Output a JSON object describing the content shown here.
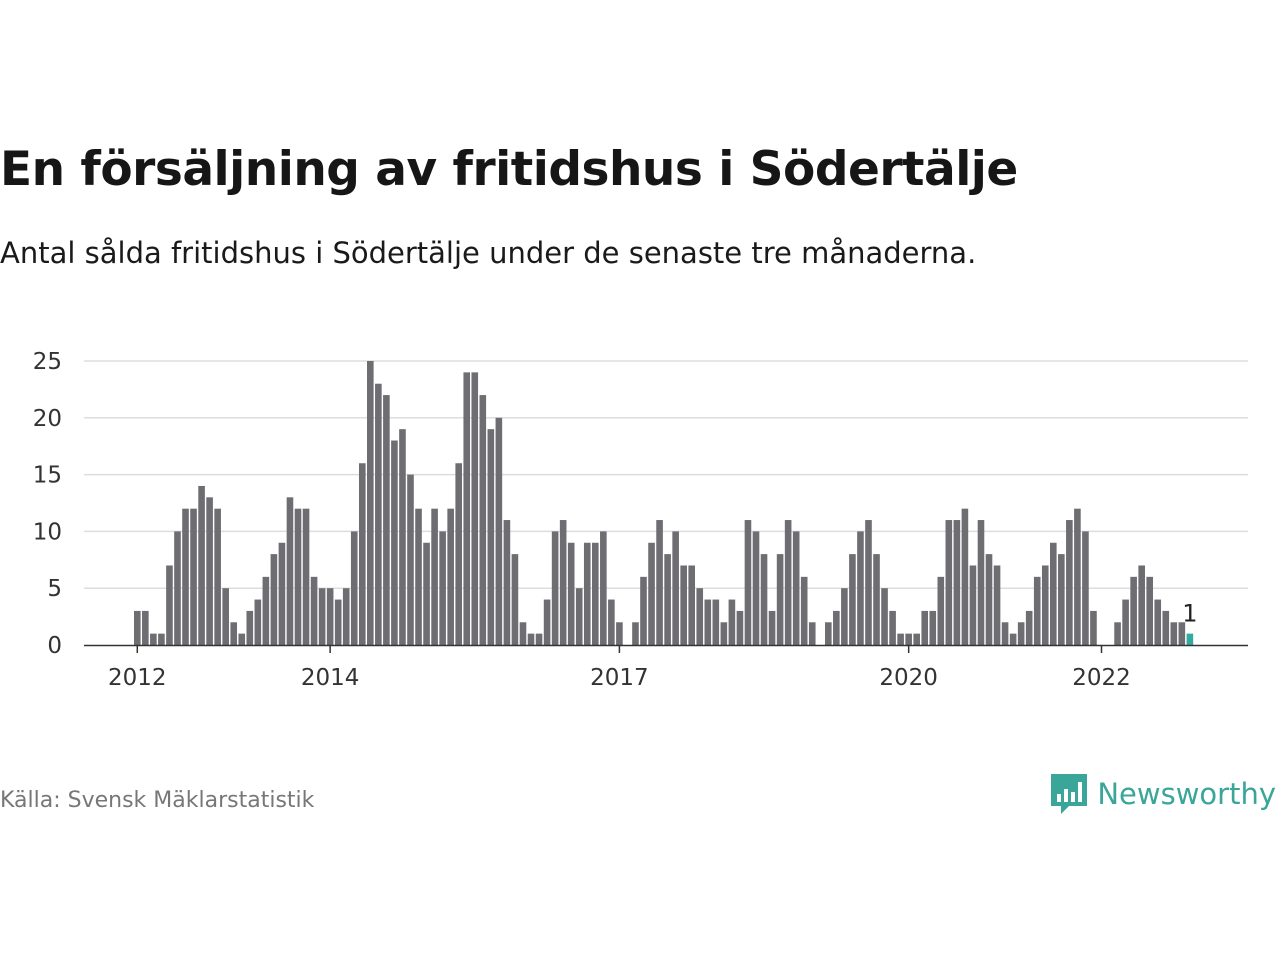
{
  "header": {
    "title": "En försäljning av fritidshus i Södertälje",
    "subtitle": "Antal sålda fritidshus i Södertälje under de senaste tre månaderna."
  },
  "footer": {
    "source": "Källa: Svensk Mäklarstatistik",
    "brand": "Newsworthy",
    "brand_icon": "bar-chart-speech-bubble-icon"
  },
  "colors": {
    "bar": "#6d6d72",
    "highlight": "#33a9a0",
    "grid": "#dddddd",
    "axis": "#333333",
    "brand": "#3aa69a"
  },
  "chart_data": {
    "type": "bar",
    "xlabel": "",
    "ylabel": "",
    "ylim": [
      0,
      25
    ],
    "yticks": [
      0,
      5,
      10,
      15,
      20,
      25
    ],
    "grid": true,
    "x_tick_labels": [
      {
        "label": "2012",
        "x": "2012-01"
      },
      {
        "label": "2014",
        "x": "2014-01"
      },
      {
        "label": "2017",
        "x": "2017-01"
      },
      {
        "label": "2020",
        "x": "2020-01"
      },
      {
        "label": "2022",
        "x": "2022-01"
      }
    ],
    "start_month": "2012-01",
    "values": [
      3,
      3,
      1,
      1,
      7,
      10,
      12,
      12,
      14,
      13,
      12,
      5,
      2,
      1,
      3,
      4,
      6,
      8,
      9,
      13,
      12,
      12,
      6,
      5,
      5,
      4,
      5,
      10,
      16,
      25,
      23,
      22,
      18,
      19,
      15,
      12,
      9,
      12,
      10,
      12,
      16,
      24,
      24,
      22,
      19,
      20,
      11,
      8,
      2,
      1,
      1,
      4,
      10,
      11,
      9,
      5,
      9,
      9,
      10,
      4,
      2,
      0,
      2,
      6,
      9,
      11,
      8,
      10,
      7,
      7,
      5,
      4,
      4,
      2,
      4,
      3,
      11,
      10,
      8,
      3,
      8,
      11,
      10,
      6,
      2,
      0,
      2,
      3,
      5,
      8,
      10,
      11,
      8,
      5,
      3,
      1,
      1,
      1,
      3,
      3,
      6,
      11,
      11,
      12,
      7,
      11,
      8,
      7,
      2,
      1,
      2,
      3,
      6,
      7,
      9,
      8,
      11,
      12,
      10,
      3,
      0,
      0,
      2,
      4,
      6,
      7,
      6,
      4,
      3,
      2,
      2,
      1
    ],
    "highlight_last": true,
    "annotations": [
      {
        "label": "1",
        "target": "last-bar"
      }
    ]
  }
}
